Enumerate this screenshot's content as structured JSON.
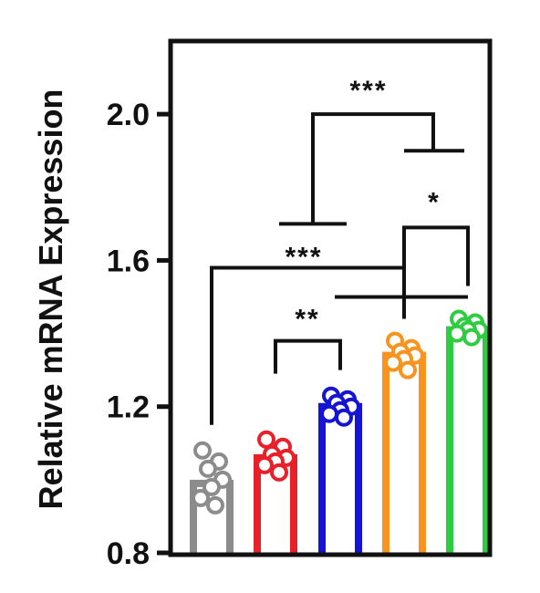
{
  "chart_data": {
    "type": "bar",
    "title": "",
    "xlabel": "",
    "ylabel": "Relative mRNA Expression",
    "ylim": [
      0.8,
      2.2
    ],
    "yticks": [
      {
        "value": 0.8,
        "label": "0.8"
      },
      {
        "value": 1.2,
        "label": "1.2"
      },
      {
        "value": 1.6,
        "label": "1.6"
      },
      {
        "value": 2.0,
        "label": "2.0"
      }
    ],
    "categories": [
      "",
      "",
      "",
      "",
      ""
    ],
    "colors": [
      "#8c8c8c",
      "#e8202a",
      "#1414d2",
      "#f7931e",
      "#2ecc40"
    ],
    "values": [
      0.99,
      1.06,
      1.2,
      1.34,
      1.41
    ],
    "points": [
      [
        1.08,
        1.05,
        1.03,
        1.0,
        0.98,
        0.95,
        0.93
      ],
      [
        1.11,
        1.09,
        1.07,
        1.06,
        1.05,
        1.04,
        1.02
      ],
      [
        1.23,
        1.22,
        1.21,
        1.2,
        1.19,
        1.18,
        1.17
      ],
      [
        1.38,
        1.36,
        1.35,
        1.34,
        1.33,
        1.32,
        1.3
      ],
      [
        1.44,
        1.43,
        1.42,
        1.41,
        1.41,
        1.4,
        1.39
      ]
    ],
    "significance": [
      {
        "label": "**"
      },
      {
        "label": "***"
      },
      {
        "label": "*"
      },
      {
        "label": "***"
      }
    ]
  }
}
